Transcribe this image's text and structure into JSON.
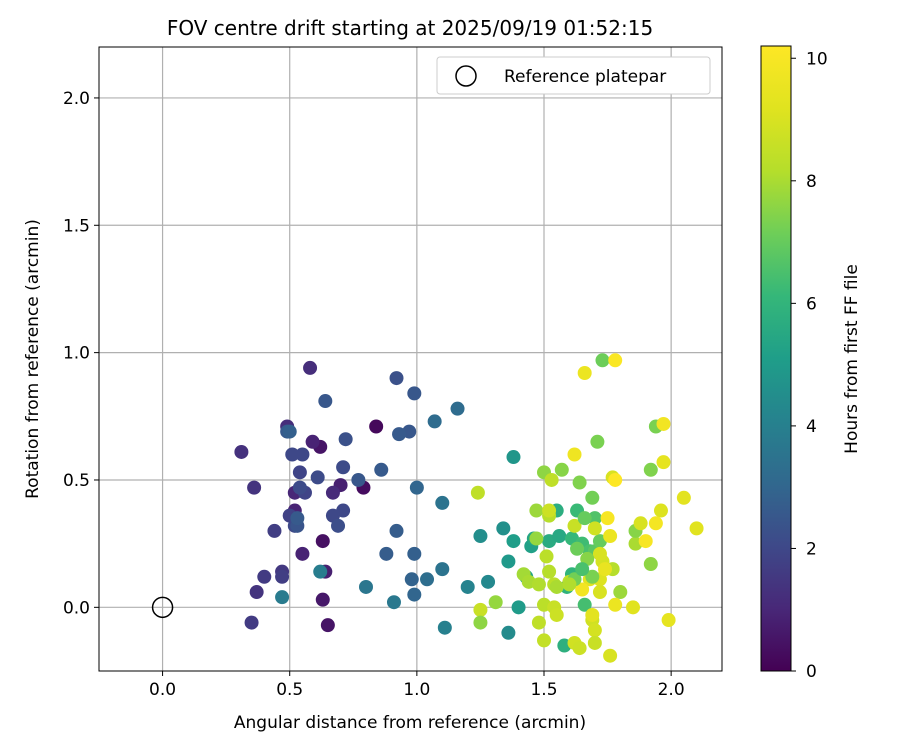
{
  "chart_data": {
    "type": "scatter",
    "title": "FOV centre drift starting at 2025/09/19 01:52:15",
    "xlabel": "Angular distance from reference (arcmin)",
    "ylabel": "Rotation from reference (arcmin)",
    "xlim": [
      -0.25,
      2.2
    ],
    "ylim": [
      -0.25,
      2.2
    ],
    "xticks": [
      0.0,
      0.5,
      1.0,
      1.5,
      2.0
    ],
    "xtick_labels": [
      "0.0",
      "0.5",
      "1.0",
      "1.5",
      "2.0"
    ],
    "yticks": [
      0.0,
      0.5,
      1.0,
      1.5,
      2.0
    ],
    "ytick_labels": [
      "0.0",
      "0.5",
      "1.0",
      "1.5",
      "2.0"
    ],
    "grid": true,
    "legend": {
      "position": "top-right",
      "entries": [
        "Reference platepar"
      ]
    },
    "reference": {
      "x": 0.0,
      "y": 0.0,
      "label": "Reference platepar"
    },
    "colorbar": {
      "label": "Hours from first FF file",
      "range": [
        0,
        10.2
      ],
      "ticks": [
        0,
        2,
        4,
        6,
        8,
        10
      ],
      "tick_labels": [
        "0",
        "2",
        "4",
        "6",
        "8",
        "10"
      ],
      "colormap": "viridis"
    },
    "series": [
      {
        "name": "FF files",
        "points": [
          {
            "x": 0.84,
            "y": 0.71,
            "c": 0.2
          },
          {
            "x": 0.79,
            "y": 0.47,
            "c": 0.3
          },
          {
            "x": 0.62,
            "y": 0.63,
            "c": 0.5
          },
          {
            "x": 0.63,
            "y": 0.26,
            "c": 0.4
          },
          {
            "x": 0.63,
            "y": 0.03,
            "c": 0.6
          },
          {
            "x": 0.65,
            "y": -0.07,
            "c": 0.5
          },
          {
            "x": 0.55,
            "y": 0.21,
            "c": 0.9
          },
          {
            "x": 0.64,
            "y": 0.14,
            "c": 0.8
          },
          {
            "x": 0.52,
            "y": 0.38,
            "c": 0.9
          },
          {
            "x": 0.52,
            "y": 0.45,
            "c": 1.0
          },
          {
            "x": 0.59,
            "y": 0.65,
            "c": 0.9
          },
          {
            "x": 0.58,
            "y": 0.94,
            "c": 1.2
          },
          {
            "x": 0.7,
            "y": 0.48,
            "c": 0.8
          },
          {
            "x": 0.67,
            "y": 0.45,
            "c": 1.1
          },
          {
            "x": 0.49,
            "y": 0.71,
            "c": 1.2
          },
          {
            "x": 0.31,
            "y": 0.61,
            "c": 1.3
          },
          {
            "x": 0.36,
            "y": 0.47,
            "c": 1.4
          },
          {
            "x": 0.37,
            "y": 0.06,
            "c": 1.4
          },
          {
            "x": 0.4,
            "y": 0.12,
            "c": 1.6
          },
          {
            "x": 0.35,
            "y": -0.06,
            "c": 1.6
          },
          {
            "x": 0.47,
            "y": 0.14,
            "c": 1.5
          },
          {
            "x": 0.47,
            "y": 0.12,
            "c": 1.7
          },
          {
            "x": 0.44,
            "y": 0.3,
            "c": 1.7
          },
          {
            "x": 0.5,
            "y": 0.36,
            "c": 1.8
          },
          {
            "x": 0.54,
            "y": 0.53,
            "c": 1.9
          },
          {
            "x": 0.55,
            "y": 0.6,
            "c": 2.0
          },
          {
            "x": 0.56,
            "y": 0.45,
            "c": 1.9
          },
          {
            "x": 0.51,
            "y": 0.6,
            "c": 2.0
          },
          {
            "x": 0.52,
            "y": 0.32,
            "c": 2.0
          },
          {
            "x": 0.54,
            "y": 0.47,
            "c": 2.1
          },
          {
            "x": 0.61,
            "y": 0.51,
            "c": 2.1
          },
          {
            "x": 0.67,
            "y": 0.36,
            "c": 2.0
          },
          {
            "x": 0.69,
            "y": 0.32,
            "c": 2.2
          },
          {
            "x": 0.71,
            "y": 0.38,
            "c": 2.0
          },
          {
            "x": 0.71,
            "y": 0.55,
            "c": 2.1
          },
          {
            "x": 0.72,
            "y": 0.66,
            "c": 2.3
          },
          {
            "x": 0.64,
            "y": 0.81,
            "c": 2.5
          },
          {
            "x": 0.86,
            "y": 0.54,
            "c": 2.6
          },
          {
            "x": 0.92,
            "y": 0.9,
            "c": 2.3
          },
          {
            "x": 0.97,
            "y": 0.69,
            "c": 2.5
          },
          {
            "x": 0.99,
            "y": 0.84,
            "c": 2.5
          },
          {
            "x": 0.93,
            "y": 0.68,
            "c": 2.6
          },
          {
            "x": 0.53,
            "y": 0.32,
            "c": 2.4
          },
          {
            "x": 0.53,
            "y": 0.35,
            "c": 2.6
          },
          {
            "x": 0.49,
            "y": 0.69,
            "c": 2.6
          },
          {
            "x": 0.5,
            "y": 0.69,
            "c": 2.8
          },
          {
            "x": 0.77,
            "y": 0.5,
            "c": 2.5
          },
          {
            "x": 0.88,
            "y": 0.21,
            "c": 2.7
          },
          {
            "x": 0.92,
            "y": 0.3,
            "c": 2.7
          },
          {
            "x": 0.99,
            "y": 0.21,
            "c": 2.8
          },
          {
            "x": 0.98,
            "y": 0.11,
            "c": 2.9
          },
          {
            "x": 0.99,
            "y": 0.05,
            "c": 3.0
          },
          {
            "x": 1.0,
            "y": 0.47,
            "c": 3.0
          },
          {
            "x": 1.07,
            "y": 0.73,
            "c": 3.2
          },
          {
            "x": 1.16,
            "y": 0.78,
            "c": 3.2
          },
          {
            "x": 1.04,
            "y": 0.11,
            "c": 3.3
          },
          {
            "x": 1.1,
            "y": 0.15,
            "c": 3.5
          },
          {
            "x": 1.1,
            "y": 0.41,
            "c": 3.5
          },
          {
            "x": 0.8,
            "y": 0.08,
            "c": 3.6
          },
          {
            "x": 0.91,
            "y": 0.02,
            "c": 3.7
          },
          {
            "x": 0.47,
            "y": 0.04,
            "c": 3.8
          },
          {
            "x": 0.62,
            "y": 0.14,
            "c": 3.9
          },
          {
            "x": 1.11,
            "y": -0.08,
            "c": 4.0
          },
          {
            "x": 1.2,
            "y": 0.08,
            "c": 4.1
          },
          {
            "x": 1.28,
            "y": 0.1,
            "c": 4.3
          },
          {
            "x": 1.25,
            "y": 0.28,
            "c": 4.5
          },
          {
            "x": 1.36,
            "y": -0.1,
            "c": 4.4
          },
          {
            "x": 1.34,
            "y": 0.31,
            "c": 4.6
          },
          {
            "x": 1.38,
            "y": 0.59,
            "c": 4.8
          },
          {
            "x": 1.36,
            "y": 0.18,
            "c": 4.9
          },
          {
            "x": 1.38,
            "y": 0.26,
            "c": 5.1
          },
          {
            "x": 1.4,
            "y": 0.0,
            "c": 5.0
          },
          {
            "x": 1.43,
            "y": 0.12,
            "c": 5.3
          },
          {
            "x": 1.45,
            "y": 0.24,
            "c": 5.2
          },
          {
            "x": 1.46,
            "y": 0.27,
            "c": 5.4
          },
          {
            "x": 1.52,
            "y": 0.26,
            "c": 5.6
          },
          {
            "x": 1.56,
            "y": 0.28,
            "c": 5.5
          },
          {
            "x": 1.55,
            "y": 0.38,
            "c": 5.7
          },
          {
            "x": 1.58,
            "y": -0.15,
            "c": 5.8
          },
          {
            "x": 1.59,
            "y": 0.08,
            "c": 5.9
          },
          {
            "x": 1.61,
            "y": 0.13,
            "c": 6.0
          },
          {
            "x": 1.61,
            "y": 0.27,
            "c": 6.1
          },
          {
            "x": 1.63,
            "y": 0.38,
            "c": 6.2
          },
          {
            "x": 1.65,
            "y": 0.25,
            "c": 6.3
          },
          {
            "x": 1.66,
            "y": 0.01,
            "c": 6.4
          },
          {
            "x": 1.68,
            "y": 0.22,
            "c": 6.5
          },
          {
            "x": 1.7,
            "y": 0.35,
            "c": 6.6
          },
          {
            "x": 1.7,
            "y": 0.22,
            "c": 6.8
          },
          {
            "x": 1.72,
            "y": 0.26,
            "c": 7.0
          },
          {
            "x": 1.73,
            "y": 0.97,
            "c": 7.1
          },
          {
            "x": 1.71,
            "y": 0.65,
            "c": 7.3
          },
          {
            "x": 1.69,
            "y": 0.43,
            "c": 7.2
          },
          {
            "x": 1.64,
            "y": 0.49,
            "c": 7.4
          },
          {
            "x": 1.57,
            "y": 0.54,
            "c": 7.5
          },
          {
            "x": 1.5,
            "y": 0.53,
            "c": 7.6
          },
          {
            "x": 1.47,
            "y": 0.38,
            "c": 7.8
          },
          {
            "x": 1.47,
            "y": 0.27,
            "c": 7.7
          },
          {
            "x": 1.42,
            "y": 0.13,
            "c": 7.9
          },
          {
            "x": 1.44,
            "y": 0.1,
            "c": 8.0
          },
          {
            "x": 1.48,
            "y": 0.09,
            "c": 8.1
          },
          {
            "x": 1.52,
            "y": 0.14,
            "c": 8.2
          },
          {
            "x": 1.54,
            "y": 0.09,
            "c": 8.3
          },
          {
            "x": 1.5,
            "y": 0.01,
            "c": 8.3
          },
          {
            "x": 1.48,
            "y": -0.06,
            "c": 8.4
          },
          {
            "x": 1.5,
            "y": -0.13,
            "c": 8.5
          },
          {
            "x": 1.54,
            "y": 0.0,
            "c": 8.6
          },
          {
            "x": 1.55,
            "y": -0.03,
            "c": 8.7
          },
          {
            "x": 1.62,
            "y": -0.14,
            "c": 8.8
          },
          {
            "x": 1.64,
            "y": -0.16,
            "c": 8.7
          },
          {
            "x": 1.69,
            "y": -0.05,
            "c": 8.8
          },
          {
            "x": 1.7,
            "y": -0.09,
            "c": 8.9
          },
          {
            "x": 1.7,
            "y": -0.14,
            "c": 8.6
          },
          {
            "x": 1.77,
            "y": 0.15,
            "c": 8.2
          },
          {
            "x": 1.8,
            "y": 0.06,
            "c": 7.8
          },
          {
            "x": 1.86,
            "y": 0.25,
            "c": 8.0
          },
          {
            "x": 1.86,
            "y": 0.3,
            "c": 7.5
          },
          {
            "x": 1.92,
            "y": 0.17,
            "c": 7.6
          },
          {
            "x": 1.92,
            "y": 0.54,
            "c": 7.4
          },
          {
            "x": 1.94,
            "y": 0.71,
            "c": 7.3
          },
          {
            "x": 1.88,
            "y": 0.33,
            "c": 9.0
          },
          {
            "x": 1.85,
            "y": 0.0,
            "c": 9.2
          },
          {
            "x": 1.96,
            "y": 0.38,
            "c": 9.1
          },
          {
            "x": 1.97,
            "y": 0.57,
            "c": 9.4
          },
          {
            "x": 2.05,
            "y": 0.43,
            "c": 9.3
          },
          {
            "x": 2.1,
            "y": 0.31,
            "c": 9.2
          },
          {
            "x": 1.99,
            "y": -0.05,
            "c": 9.4
          },
          {
            "x": 1.77,
            "y": 0.51,
            "c": 9.0
          },
          {
            "x": 1.73,
            "y": 0.18,
            "c": 8.9
          },
          {
            "x": 1.7,
            "y": 0.31,
            "c": 8.8
          },
          {
            "x": 1.72,
            "y": 0.21,
            "c": 9.0
          },
          {
            "x": 1.72,
            "y": 0.11,
            "c": 9.1
          },
          {
            "x": 1.68,
            "y": 0.11,
            "c": 9.2
          },
          {
            "x": 1.69,
            "y": -0.03,
            "c": 9.3
          },
          {
            "x": 1.72,
            "y": 0.06,
            "c": 9.0
          },
          {
            "x": 1.76,
            "y": -0.19,
            "c": 9.0
          },
          {
            "x": 1.76,
            "y": 0.28,
            "c": 9.6
          },
          {
            "x": 1.66,
            "y": 0.92,
            "c": 9.6
          },
          {
            "x": 1.62,
            "y": 0.6,
            "c": 9.7
          },
          {
            "x": 1.65,
            "y": 0.07,
            "c": 9.8
          },
          {
            "x": 1.75,
            "y": 0.35,
            "c": 10.0
          },
          {
            "x": 1.78,
            "y": 0.97,
            "c": 10.1
          },
          {
            "x": 1.78,
            "y": 0.5,
            "c": 10.2
          },
          {
            "x": 1.9,
            "y": 0.26,
            "c": 10.0
          },
          {
            "x": 1.94,
            "y": 0.33,
            "c": 9.9
          },
          {
            "x": 1.97,
            "y": 0.72,
            "c": 9.8
          },
          {
            "x": 1.6,
            "y": 0.1,
            "c": 8.5
          },
          {
            "x": 1.24,
            "y": 0.45,
            "c": 8.4
          },
          {
            "x": 1.25,
            "y": -0.01,
            "c": 8.6
          },
          {
            "x": 1.25,
            "y": -0.06,
            "c": 7.6
          },
          {
            "x": 1.31,
            "y": 0.02,
            "c": 7.7
          },
          {
            "x": 1.51,
            "y": 0.2,
            "c": 8.3
          },
          {
            "x": 1.52,
            "y": 0.36,
            "c": 8.2
          },
          {
            "x": 1.53,
            "y": 0.5,
            "c": 8.4
          },
          {
            "x": 1.52,
            "y": 0.38,
            "c": 8.7
          },
          {
            "x": 1.62,
            "y": 0.32,
            "c": 8.6
          },
          {
            "x": 1.66,
            "y": 0.35,
            "c": 7.0
          },
          {
            "x": 1.63,
            "y": 0.23,
            "c": 7.1
          },
          {
            "x": 1.67,
            "y": 0.19,
            "c": 7.5
          },
          {
            "x": 1.69,
            "y": 0.12,
            "c": 7.3
          },
          {
            "x": 1.62,
            "y": 0.11,
            "c": 7.2
          },
          {
            "x": 1.55,
            "y": 0.08,
            "c": 8.0
          },
          {
            "x": 1.6,
            "y": 0.09,
            "c": 8.1
          },
          {
            "x": 1.65,
            "y": 0.15,
            "c": 6.5
          },
          {
            "x": 1.74,
            "y": 0.15,
            "c": 9.5
          },
          {
            "x": 1.78,
            "y": 0.01,
            "c": 9.6
          }
        ]
      }
    ]
  }
}
